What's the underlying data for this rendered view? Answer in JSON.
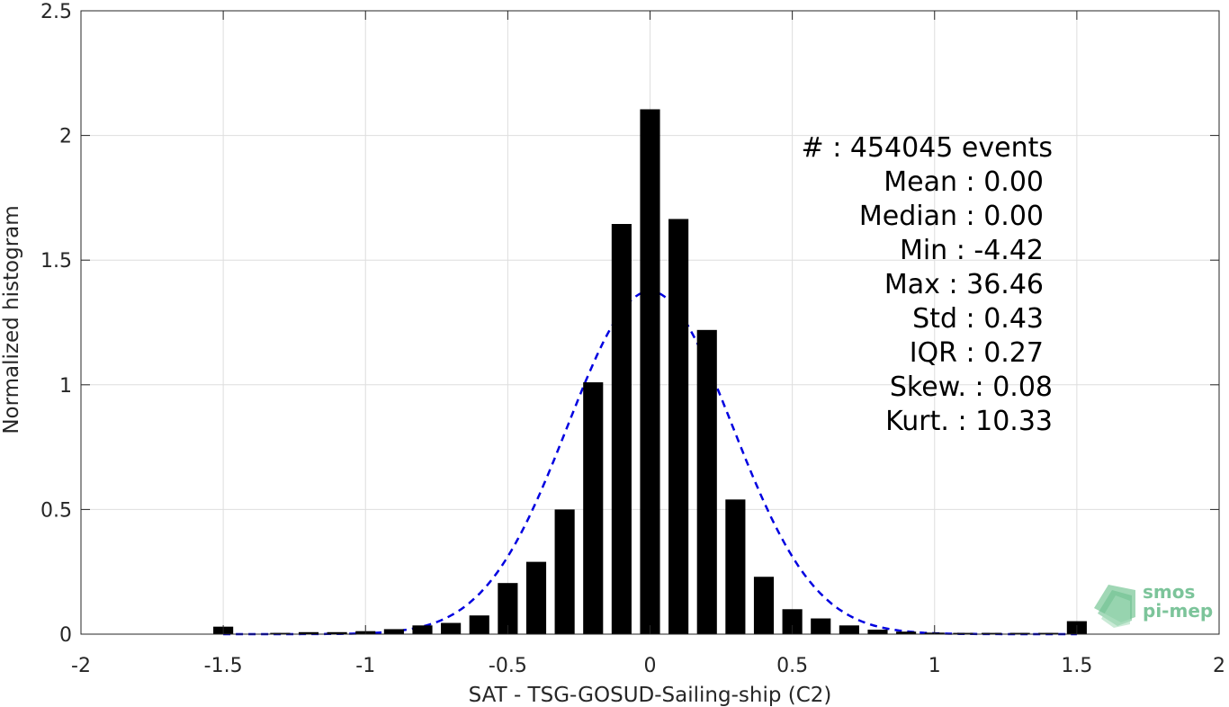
{
  "chart_data": {
    "type": "bar",
    "xlabel": "SAT - TSG-GOSUD-Sailing-ship (C2)",
    "ylabel": "Normalized histogram",
    "xlim": [
      -2,
      2
    ],
    "ylim": [
      0,
      2.5
    ],
    "grid": true,
    "x_ticks": [
      "-2",
      "-1.5",
      "-1",
      "-0.5",
      "0",
      "0.5",
      "1",
      "1.5",
      "2"
    ],
    "y_ticks": [
      "0",
      "0.5",
      "1",
      "1.5",
      "2",
      "2.5"
    ],
    "bar_width": 0.07,
    "bars": [
      {
        "x": -1.5,
        "y": 0.03
      },
      {
        "x": -1.3,
        "y": 0.005
      },
      {
        "x": -1.2,
        "y": 0.008
      },
      {
        "x": -1.1,
        "y": 0.008
      },
      {
        "x": -1.0,
        "y": 0.012
      },
      {
        "x": -0.9,
        "y": 0.02
      },
      {
        "x": -0.8,
        "y": 0.035
      },
      {
        "x": -0.7,
        "y": 0.045
      },
      {
        "x": -0.6,
        "y": 0.075
      },
      {
        "x": -0.5,
        "y": 0.205
      },
      {
        "x": -0.4,
        "y": 0.29
      },
      {
        "x": -0.3,
        "y": 0.5
      },
      {
        "x": -0.2,
        "y": 1.01
      },
      {
        "x": -0.1,
        "y": 1.645
      },
      {
        "x": 0.0,
        "y": 2.105
      },
      {
        "x": 0.1,
        "y": 1.665
      },
      {
        "x": 0.2,
        "y": 1.22
      },
      {
        "x": 0.3,
        "y": 0.54
      },
      {
        "x": 0.4,
        "y": 0.23
      },
      {
        "x": 0.5,
        "y": 0.1
      },
      {
        "x": 0.6,
        "y": 0.063
      },
      {
        "x": 0.7,
        "y": 0.035
      },
      {
        "x": 0.8,
        "y": 0.018
      },
      {
        "x": 0.9,
        "y": 0.01
      },
      {
        "x": 1.0,
        "y": 0.006
      },
      {
        "x": 1.1,
        "y": 0.005
      },
      {
        "x": 1.2,
        "y": 0.005
      },
      {
        "x": 1.3,
        "y": 0.005
      },
      {
        "x": 1.4,
        "y": 0.005
      },
      {
        "x": 1.5,
        "y": 0.052
      }
    ],
    "fit_curve": {
      "style": "dashed",
      "color": "#0000e0",
      "mean": 0.0,
      "std": 0.29,
      "peak": 1.375,
      "x_range": [
        -1.5,
        1.5
      ]
    },
    "bar_color": "#000000",
    "stats": [
      "#  : 454045 events",
      "Mean : 0.00",
      "Median : 0.00",
      "Min : -4.42",
      "Max : 36.46",
      "Std : 0.43",
      "IQR : 0.27",
      "Skew. : 0.08",
      "Kurt. : 10.33"
    ]
  },
  "logo": {
    "line1": "smos",
    "line2": "pi-mep",
    "color": "#7cc49a"
  }
}
